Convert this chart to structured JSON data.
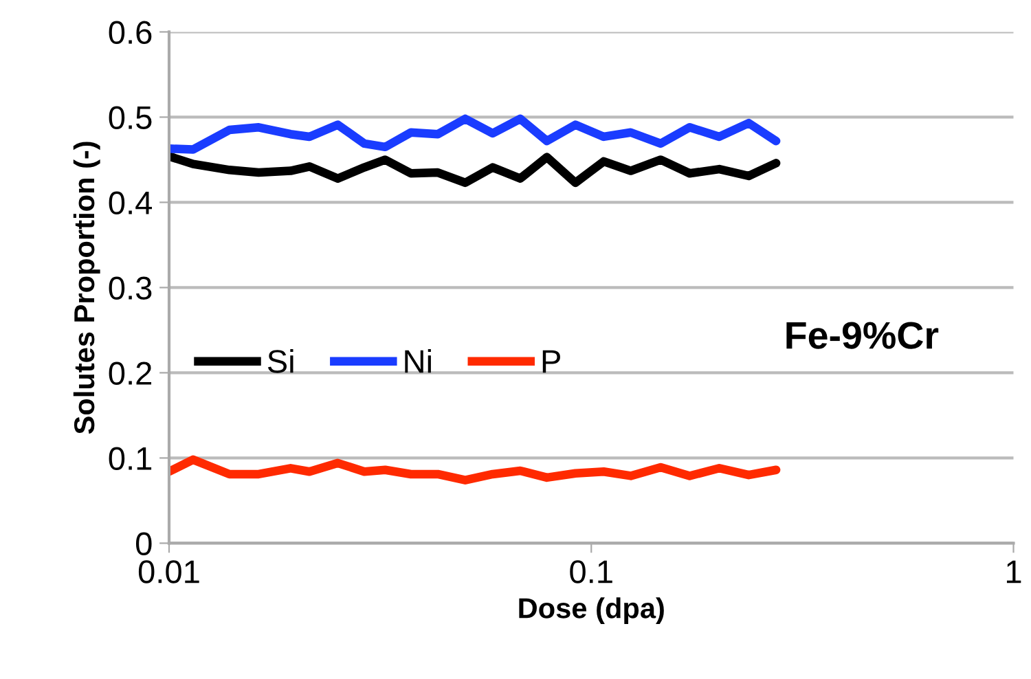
{
  "chart_data": {
    "type": "line",
    "xlabel": "Dose (dpa)",
    "ylabel": "Solutes Proportion (-)",
    "log": "x",
    "x": [
      0.01,
      0.0114,
      0.0139,
      0.0163,
      0.0194,
      0.0215,
      0.0251,
      0.029,
      0.0325,
      0.0374,
      0.0433,
      0.0503,
      0.0584,
      0.0679,
      0.0785,
      0.0917,
      0.107,
      0.124,
      0.146,
      0.171,
      0.201,
      0.236,
      0.274
    ],
    "series": [
      {
        "name": "Si",
        "color": "#000000",
        "values": [
          0.454,
          0.445,
          0.438,
          0.435,
          0.437,
          0.442,
          0.428,
          0.441,
          0.45,
          0.434,
          0.435,
          0.423,
          0.441,
          0.428,
          0.453,
          0.423,
          0.448,
          0.437,
          0.45,
          0.434,
          0.439,
          0.431,
          0.446
        ]
      },
      {
        "name": "Ni",
        "color": "#1a3cff",
        "values": [
          0.463,
          0.462,
          0.485,
          0.488,
          0.48,
          0.477,
          0.491,
          0.469,
          0.465,
          0.482,
          0.48,
          0.498,
          0.481,
          0.498,
          0.472,
          0.491,
          0.477,
          0.482,
          0.469,
          0.488,
          0.477,
          0.493,
          0.472
        ]
      },
      {
        "name": "P",
        "color": "#ff2a00",
        "values": [
          0.084,
          0.098,
          0.081,
          0.081,
          0.088,
          0.084,
          0.094,
          0.084,
          0.086,
          0.081,
          0.081,
          0.074,
          0.081,
          0.085,
          0.077,
          0.082,
          0.084,
          0.079,
          0.089,
          0.079,
          0.088,
          0.08,
          0.086
        ]
      }
    ],
    "xlim": [
      0.01,
      1
    ],
    "xticks": [
      0.01,
      0.1,
      1
    ],
    "ylim": [
      0,
      0.6
    ],
    "yticks": [
      0,
      0.1,
      0.2,
      0.3,
      0.4,
      0.5,
      0.6
    ],
    "grid": "y",
    "legend": "left",
    "marker": "none",
    "line_style": "solid",
    "annotations": [
      "Fe-9%Cr"
    ]
  }
}
